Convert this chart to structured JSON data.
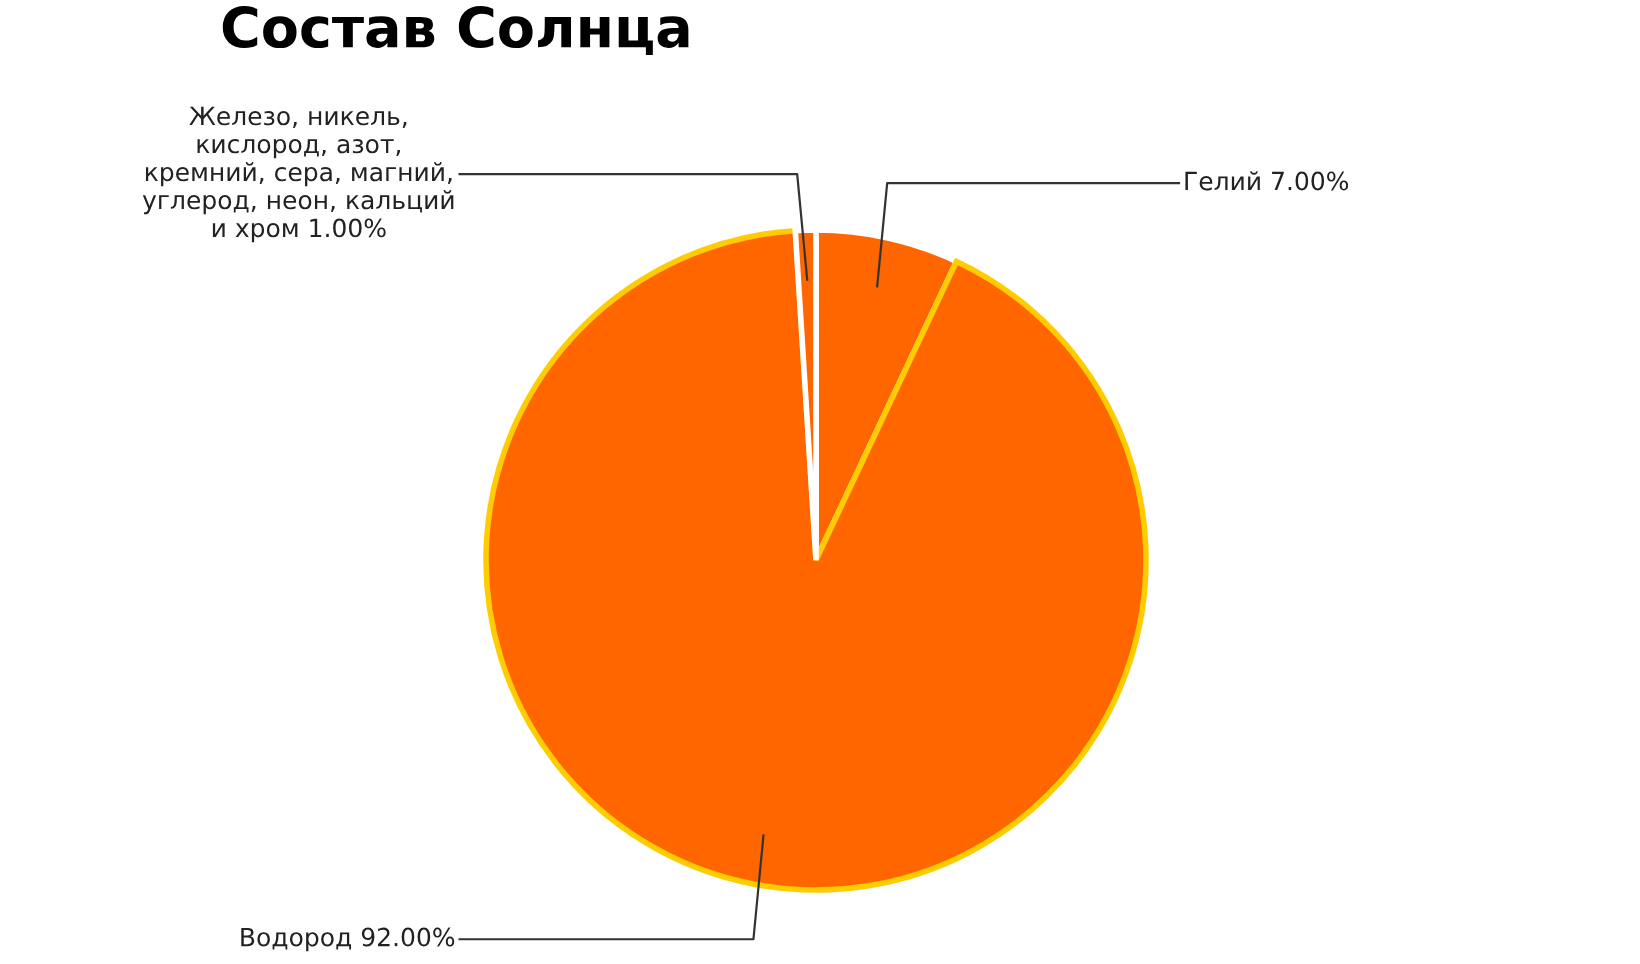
{
  "chart_data": {
    "type": "pie",
    "title": "Состав Солнца",
    "categories": [
      "Гелий",
      "Водород",
      "Железо, никель, кислород, азот, кремний, сера, магний, углерод, неон, кальций и хром"
    ],
    "values": [
      7,
      92,
      1
    ],
    "value_labels": [
      "7.00%",
      "92.00%",
      "1.00%"
    ],
    "colors": [
      "#ff6600",
      "#ff6600",
      "#ff6600"
    ],
    "legend": false
  }
}
